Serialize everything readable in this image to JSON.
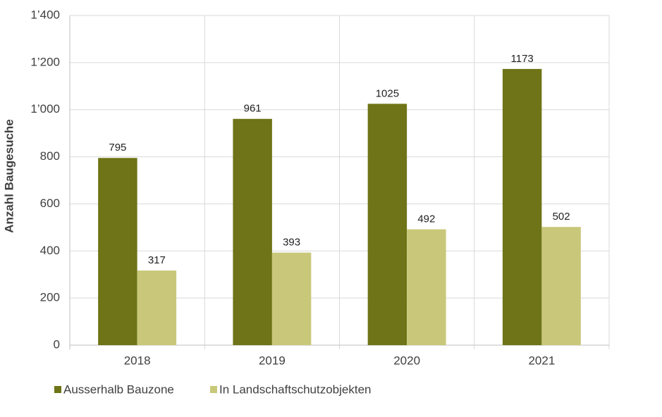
{
  "chart_data": {
    "type": "bar",
    "y_label": "Anzahl Baugesuche",
    "categories": [
      "2018",
      "2019",
      "2020",
      "2021"
    ],
    "series": [
      {
        "name": "Ausserhalb Bauzone",
        "color": "#6e7417",
        "values": [
          795,
          961,
          1025,
          1173
        ]
      },
      {
        "name": "In Landschaftschutzobjekten",
        "color": "#c9c87a",
        "values": [
          317,
          393,
          492,
          502
        ]
      }
    ],
    "ylim": [
      0,
      1400
    ],
    "yticks": [
      0,
      200,
      400,
      600,
      800,
      {
        "value": 1000,
        "label": "1’000"
      },
      {
        "value": 1200,
        "label": "1’200"
      },
      {
        "value": 1400,
        "label": "1’400"
      }
    ],
    "grid": true
  }
}
